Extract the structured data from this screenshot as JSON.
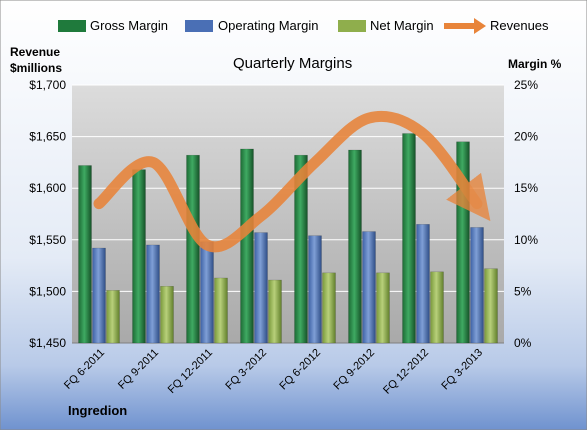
{
  "chart_data": {
    "type": "bar",
    "title": "Quarterly Margins",
    "company": "Ingredion",
    "categories": [
      "FQ 6-2011",
      "FQ 9-2011",
      "FQ 12-2011",
      "FQ 3-2012",
      "FQ 6-2012",
      "FQ 9-2012",
      "FQ 12-2012",
      "FQ 3-2013"
    ],
    "y_left": {
      "label_line1": "Revenue",
      "label_line2": "$millions",
      "min": 1450,
      "max": 1700,
      "step": 50,
      "ticks": [
        "$1,450",
        "$1,500",
        "$1,550",
        "$1,600",
        "$1,650",
        "$1,700"
      ]
    },
    "y_right": {
      "label": "Margin %",
      "min": 0,
      "max": 25,
      "step": 5,
      "ticks": [
        "0%",
        "5%",
        "10%",
        "15%",
        "20%",
        "25%"
      ]
    },
    "bar_series": [
      {
        "name": "Gross Margin",
        "axis": "right",
        "color": "#1f7a3c",
        "values": [
          17.2,
          16.8,
          18.2,
          18.8,
          18.2,
          18.7,
          20.3,
          19.5
        ]
      },
      {
        "name": "Operating Margin",
        "axis": "right",
        "color": "#4a6fb5",
        "values": [
          9.2,
          9.5,
          9.8,
          10.7,
          10.4,
          10.8,
          11.5,
          11.2
        ]
      },
      {
        "name": "Net Margin",
        "axis": "right",
        "color": "#8fae4c",
        "values": [
          5.1,
          5.5,
          6.3,
          6.1,
          6.8,
          6.8,
          6.9,
          7.2
        ]
      }
    ],
    "line_series": {
      "name": "Revenues",
      "axis": "left",
      "color": "#e8843a",
      "values": [
        1585,
        1625,
        1545,
        1573,
        1625,
        1668,
        1653,
        1585
      ]
    },
    "grid": true,
    "legend_position": "top"
  }
}
